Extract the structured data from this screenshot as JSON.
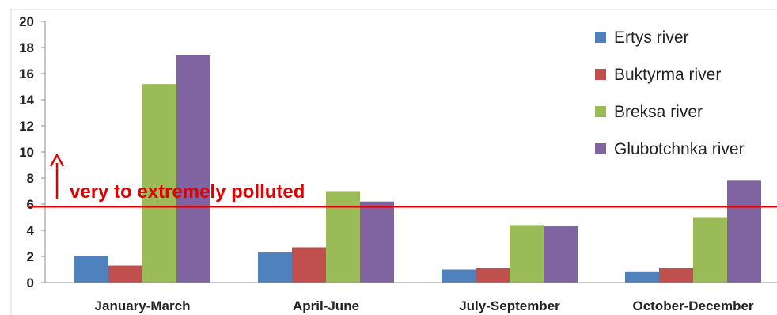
{
  "chart_data": {
    "type": "bar",
    "categories": [
      "January-March",
      "April-June",
      "July-September",
      "October-December"
    ],
    "series": [
      {
        "name": "Ertys river",
        "color": "#4F81BD",
        "values": [
          2.0,
          2.3,
          1.0,
          0.8
        ]
      },
      {
        "name": "Buktyrma river",
        "color": "#C0504D",
        "values": [
          1.3,
          2.7,
          1.1,
          1.1
        ]
      },
      {
        "name": "Breksa river",
        "color": "#9BBB59",
        "values": [
          15.2,
          7.0,
          4.4,
          5.0
        ]
      },
      {
        "name": "Glubotchnka river",
        "color": "#8064A2",
        "values": [
          17.4,
          6.2,
          4.3,
          7.8
        ]
      }
    ],
    "ylim": [
      0,
      20
    ],
    "yticks": [
      "0",
      "2",
      "4",
      "6",
      "8",
      "10",
      "12",
      "14",
      "16",
      "18",
      "20"
    ],
    "grid": false,
    "legend_position": "top-right",
    "threshold": {
      "value": 5.8,
      "color": "#E00000",
      "label": "very to extremely polluted"
    }
  }
}
